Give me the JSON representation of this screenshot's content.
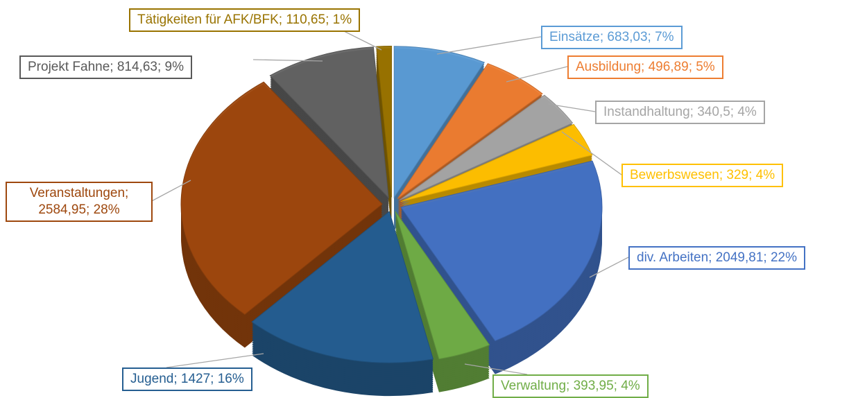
{
  "chart_data": {
    "type": "pie",
    "values": [
      683.03,
      496.89,
      340.5,
      329,
      2049.81,
      393.95,
      1427,
      2584.95,
      814.63,
      110.65
    ],
    "value_labels": [
      "Einsätze; 683,03; 7%",
      "Ausbildung; 496,89; 5%",
      "Instandhaltung; 340,5; 4%",
      "Bewerbswesen; 329; 4%",
      "div. Arbeiten; 2049,81; 22%",
      "Verwaltung; 393,95; 4%",
      "Jugend; 1427; 16%",
      "Veranstaltungen; 2584,95; 28%",
      "Projekt Fahne; 814,63; 9%",
      "Tätigkeiten für AFK/BFK; 110,65; 1%"
    ],
    "colors": [
      "#5b9bd5",
      "#ed7d31",
      "#a5a5a5",
      "#ffc000",
      "#4472c4",
      "#70ad47",
      "#255e91",
      "#9e480e",
      "#636363",
      "#997300"
    ]
  }
}
